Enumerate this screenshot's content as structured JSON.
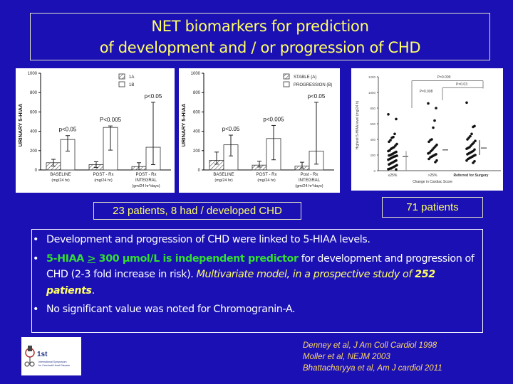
{
  "slide": {
    "title_line1": "NET biomarkers for prediction",
    "title_line2": "of development and / or progression of CHD",
    "note_left": "23 patients, 8 had / developed CHD",
    "note_right": "71 patients",
    "bullets": [
      {
        "text": "Development and progression of CHD were linked to 5-HIAA levels."
      },
      {
        "green_a": "5-HIAA ",
        "green_ul": ">",
        "green_b": " 300 μmol/L is independent predictor",
        "plain": " for development and progression of CHD (2-3 fold increase in risk). ",
        "italic": "Multivariate model, in a prospective study of ",
        "bold_italic": "252 patients",
        "end": "."
      },
      {
        "text": "No significant value was noted for Chromogranin-A."
      }
    ],
    "references": [
      "Denney et al, J Am Coll Cardiol 1998",
      "Moller et al, NEJM 2003",
      "Bhattacharyya et al, Am J cardiol 2011"
    ],
    "logo": {
      "line1": "1st",
      "line2": "International Symposium",
      "line3": "for Carcinoid Heart Disease"
    },
    "colors": {
      "background": "#1a10b4",
      "title": "#ffff66",
      "highlight": "#33dd33",
      "reference": "#ffd866"
    }
  },
  "chart_data": [
    {
      "type": "bar",
      "title": "",
      "ylabel": "URINARY 5-HIAA",
      "ylim": [
        0,
        1000
      ],
      "yticks": [
        0,
        200,
        400,
        600,
        800,
        1000
      ],
      "categories": [
        "BASELINE (mg/24 hr)",
        "POST - Rx (mg/24 hr)",
        "POST - Rx INTEGRAL (gm/24 hr*days)"
      ],
      "series": [
        {
          "name": "1A",
          "pattern": "hatched",
          "values": [
            75,
            55,
            35
          ],
          "err_low": [
            40,
            25,
            0
          ],
          "err_high": [
            110,
            85,
            75
          ]
        },
        {
          "name": "1B",
          "pattern": "open",
          "values": [
            315,
            440,
            235
          ],
          "err_low": [
            195,
            205,
            55
          ],
          "err_high": [
            355,
            455,
            700
          ]
        }
      ],
      "annotations": [
        "p<0.05",
        "P<0.005",
        "p<0.05"
      ]
    },
    {
      "type": "bar",
      "title": "",
      "ylabel": "URINARY 5-HIAA",
      "ylim": [
        0,
        1000
      ],
      "yticks": [
        0,
        200,
        400,
        600,
        800,
        1000
      ],
      "categories": [
        "BASELINE (mg/24 hr)",
        "POST - Rx (mg/24 hr)",
        "Post - Rx INTEGRAL (gm/24 hr*days)"
      ],
      "series": [
        {
          "name": "STABLE (A)",
          "pattern": "hatched",
          "values": [
            100,
            50,
            40
          ],
          "err_low": [
            60,
            30,
            20
          ],
          "err_high": [
            185,
            90,
            80
          ]
        },
        {
          "name": "PROGRESSION (B)",
          "pattern": "open",
          "values": [
            260,
            325,
            195
          ],
          "err_low": [
            145,
            105,
            60
          ],
          "err_high": [
            360,
            460,
            700
          ]
        }
      ],
      "annotations": [
        "p<0.05",
        "p<0.005",
        "p<0.05"
      ]
    },
    {
      "type": "scatter",
      "title": "",
      "xlabel": "Change in Cardiac Score",
      "ylabel": "Highest 5-HIAA level (mg/24 h)",
      "ylim": [
        0,
        1200
      ],
      "yticks": [
        0,
        200,
        400,
        600,
        800,
        1000,
        1200
      ],
      "categories": [
        "≤25%",
        ">25%",
        "Referred for Surgery"
      ],
      "medians": [
        180,
        265,
        290
      ],
      "annotations": [
        "P=0.009",
        "P=0.03",
        "P=0.008"
      ],
      "series": [
        {
          "name": "≤25%",
          "values": [
            720,
            660,
            470,
            430,
            420,
            390,
            370,
            340,
            320,
            300,
            290,
            280,
            260,
            250,
            240,
            230,
            220,
            210,
            200,
            195,
            190,
            185,
            180,
            170,
            160,
            150,
            140,
            130,
            120,
            110,
            100,
            90,
            80,
            70,
            60,
            50,
            40,
            30,
            25,
            20,
            15
          ]
        },
        {
          "name": ">25%",
          "values": [
            860,
            800,
            640,
            550,
            400,
            390,
            370,
            330,
            310,
            290,
            270,
            250,
            230,
            220,
            210,
            200,
            190,
            180,
            170,
            150,
            130,
            110
          ]
        },
        {
          "name": "Referred for Surgery",
          "values": [
            870,
            570,
            560,
            470,
            440,
            420,
            400,
            380,
            360,
            340,
            320,
            300,
            290,
            280,
            270,
            250,
            240,
            230,
            220,
            210,
            200,
            190,
            180,
            170,
            160,
            150,
            130,
            120,
            100
          ]
        }
      ]
    }
  ]
}
